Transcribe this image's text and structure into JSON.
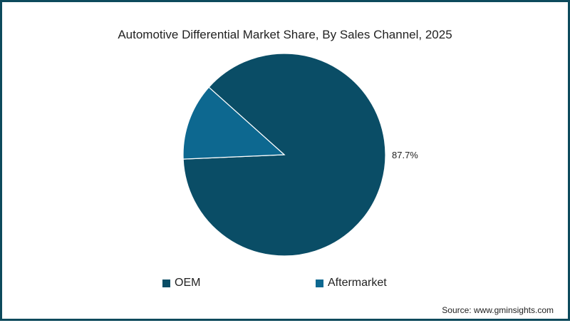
{
  "chart_data": {
    "type": "pie",
    "title": "Automotive Differential Market Share, By Sales Channel, 2025",
    "slices": [
      {
        "label": "OEM",
        "value": 87.7,
        "color": "#0a4d66",
        "data_label": "87.7%"
      },
      {
        "label": "Aftermarket",
        "value": 12.3,
        "color": "#0d6890",
        "data_label": ""
      }
    ],
    "legend_position": "bottom",
    "source": "Source: www.gminsights.com"
  }
}
